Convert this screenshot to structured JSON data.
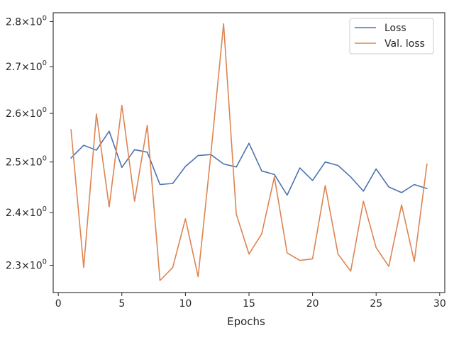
{
  "chart_data": {
    "type": "line",
    "xlabel": "Epochs",
    "ylabel": "",
    "yscale": "log",
    "xlim": [
      -0.4,
      30.4
    ],
    "ylim": [
      2.25,
      2.82
    ],
    "x_ticks": [
      0,
      5,
      10,
      15,
      20,
      25,
      30
    ],
    "y_ticks": [
      {
        "value": 2.3,
        "mantissa": "2.3",
        "exponent": "0"
      },
      {
        "value": 2.4,
        "mantissa": "2.4",
        "exponent": "0"
      },
      {
        "value": 2.5,
        "mantissa": "2.5",
        "exponent": "0"
      },
      {
        "value": 2.6,
        "mantissa": "2.6",
        "exponent": "0"
      },
      {
        "value": 2.7,
        "mantissa": "2.7",
        "exponent": "0"
      },
      {
        "value": 2.8,
        "mantissa": "2.8",
        "exponent": "0"
      }
    ],
    "grid": false,
    "legend_position": "top-right",
    "x": [
      1,
      2,
      3,
      4,
      5,
      6,
      7,
      8,
      9,
      10,
      11,
      12,
      13,
      14,
      15,
      16,
      17,
      18,
      19,
      20,
      21,
      22,
      23,
      24,
      25,
      26,
      27,
      28,
      29
    ],
    "series": [
      {
        "name": "Loss",
        "color": "#4c72b0",
        "values": [
          2.508,
          2.534,
          2.524,
          2.563,
          2.489,
          2.525,
          2.52,
          2.455,
          2.457,
          2.491,
          2.513,
          2.515,
          2.496,
          2.49,
          2.538,
          2.482,
          2.475,
          2.434,
          2.488,
          2.463,
          2.5,
          2.493,
          2.47,
          2.442,
          2.486,
          2.45,
          2.439,
          2.455,
          2.447
        ]
      },
      {
        "name": "Val. loss",
        "color": "#dd8452",
        "values": [
          2.566,
          2.296,
          2.599,
          2.411,
          2.617,
          2.422,
          2.575,
          2.272,
          2.296,
          2.388,
          2.279,
          2.515,
          2.795,
          2.397,
          2.321,
          2.359,
          2.47,
          2.323,
          2.309,
          2.312,
          2.453,
          2.321,
          2.289,
          2.422,
          2.333,
          2.298,
          2.415,
          2.307,
          2.496
        ]
      }
    ]
  }
}
